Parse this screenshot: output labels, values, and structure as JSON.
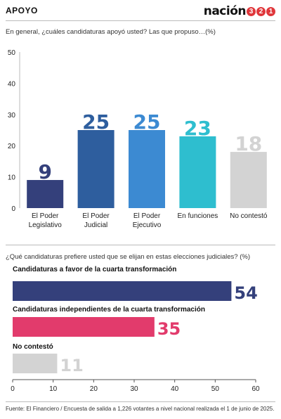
{
  "header": {
    "section": "APOYO",
    "logo_word": "nación",
    "logo_digits": [
      "3",
      "2",
      "1"
    ]
  },
  "colors": {
    "accent_red": "#e0373b",
    "navy": "#34407b",
    "dark_blue": "#2e5e9e",
    "mid_blue": "#3c8ad2",
    "teal": "#2ebecf",
    "gray": "#d3d3d3",
    "pink": "#e23b6c"
  },
  "chart_data": [
    {
      "type": "bar",
      "title": "En general, ¿cuáles candidaturas apoyó usted? Las que propuso…(%)",
      "categories": [
        "El Poder\nLegislativo",
        "El Poder\nJudicial",
        "El Poder\nEjecutivo",
        "En funciones",
        "No contestó"
      ],
      "values": [
        9,
        25,
        25,
        23,
        18
      ],
      "colors": [
        "#34407b",
        "#2e5e9e",
        "#3c8ad2",
        "#2ebecf",
        "#d3d3d3"
      ],
      "ylim": [
        0,
        50
      ],
      "yticks": [
        0,
        10,
        20,
        30,
        40,
        50
      ],
      "grid": false
    },
    {
      "type": "bar",
      "orientation": "horizontal",
      "title": "¿Qué candidaturas prefiere usted que se elijan en estas elecciones judiciales? (%)",
      "categories": [
        "Candidaturas a favor de la cuarta transformación",
        "Candidaturas independientes de la cuarta transformación",
        "No contestó"
      ],
      "values": [
        54,
        35,
        11
      ],
      "colors": [
        "#34407b",
        "#e23b6c",
        "#d3d3d3"
      ],
      "xlim": [
        0,
        60
      ],
      "xticks": [
        0,
        10,
        20,
        30,
        40,
        50,
        60
      ],
      "grid": false
    }
  ],
  "footer": {
    "source": "Fuente: El Financiero / Encuesta de salida a 1,226 votantes a nivel nacional realizada el 1 de junio de 2025."
  }
}
